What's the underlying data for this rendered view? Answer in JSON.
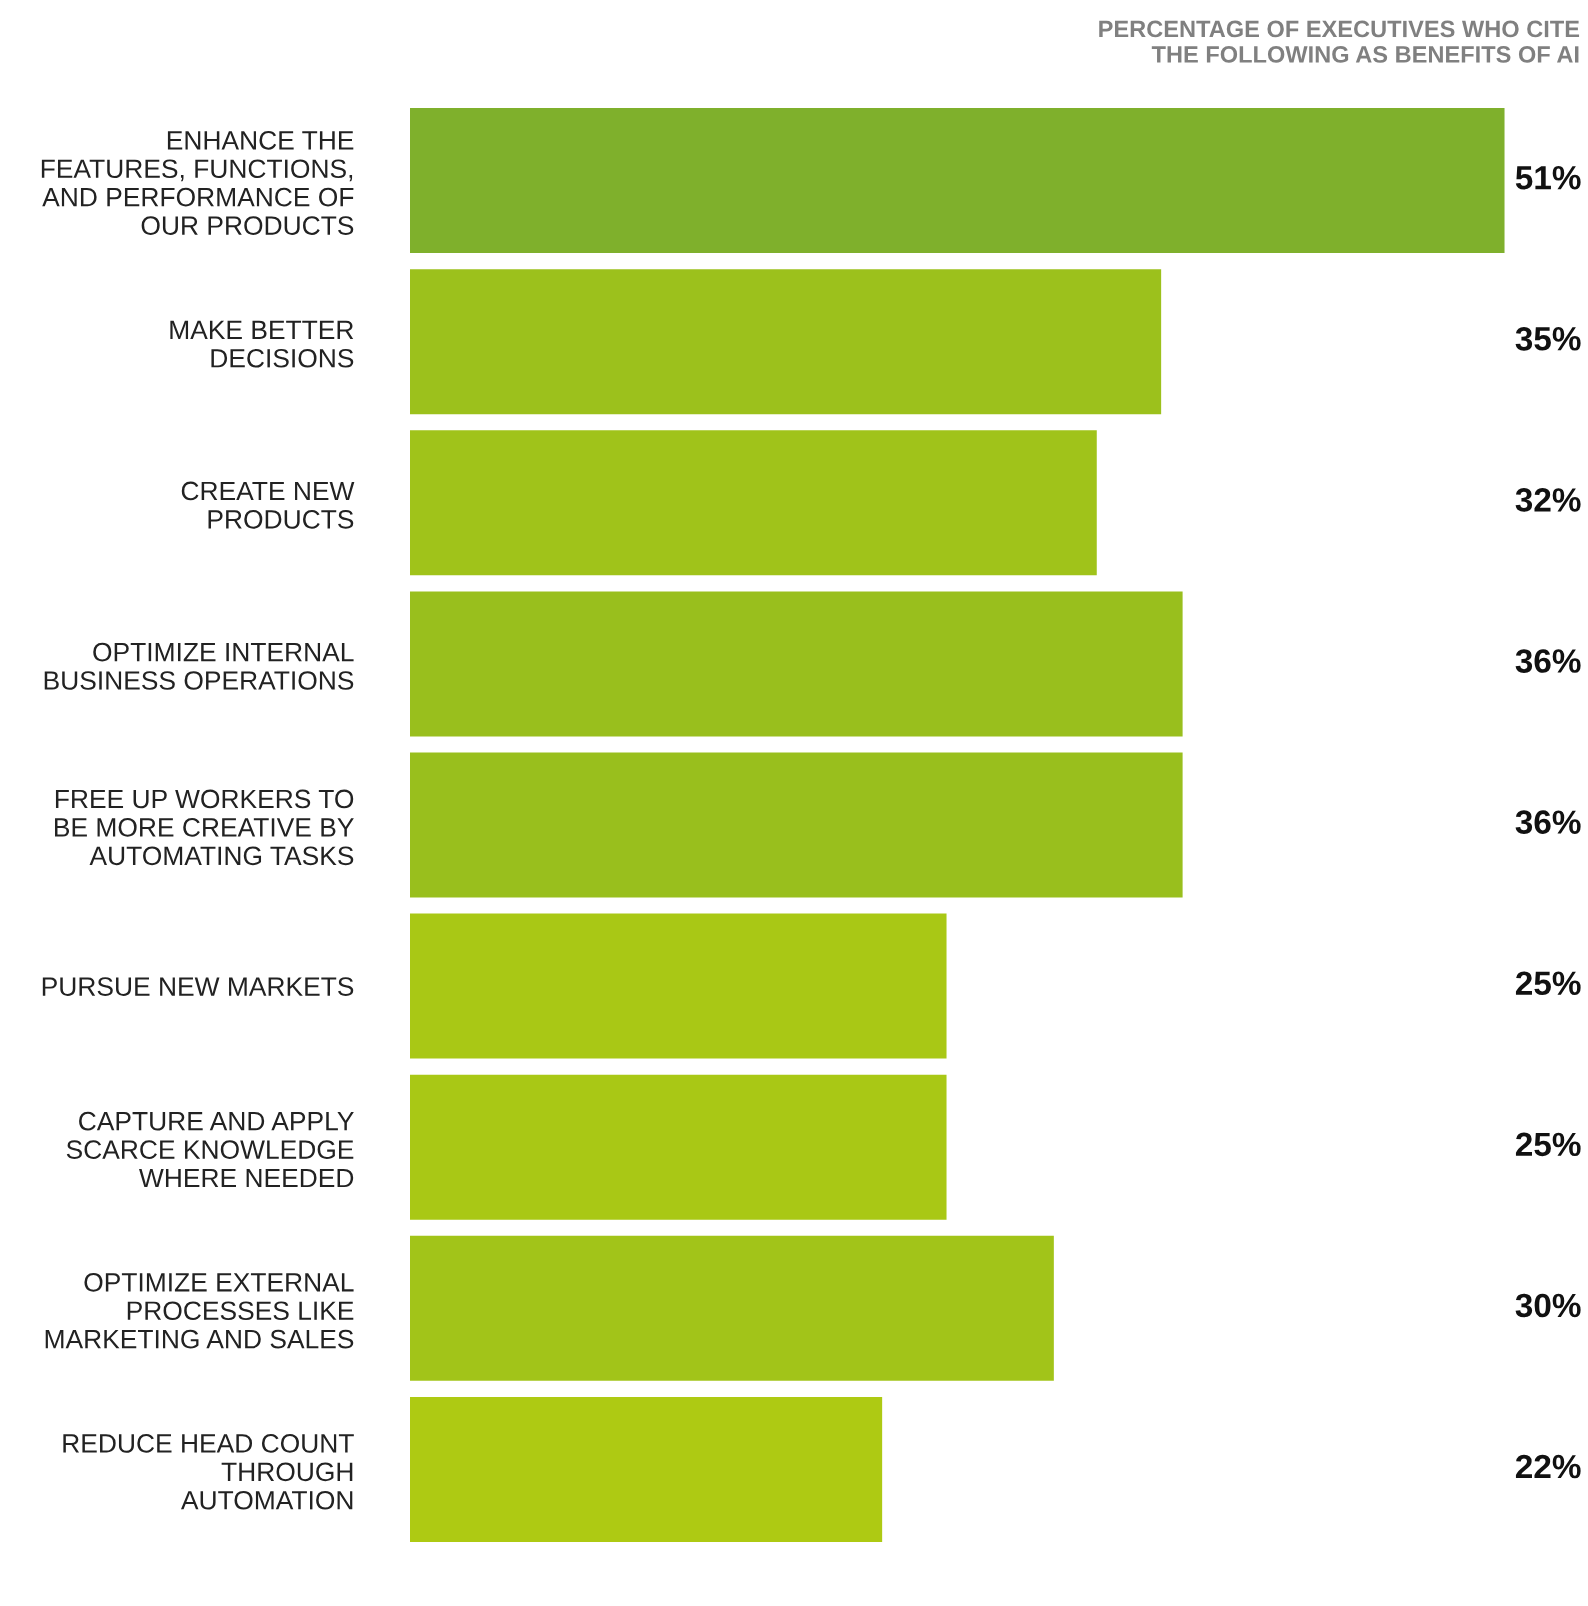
{
  "chart_data": {
    "type": "bar",
    "orientation": "horizontal",
    "title": "PERCENTAGE OF EXECUTIVES WHO CITE\nTHE FOLLOWING AS BENEFITS OF AI",
    "categories": [
      "ENHANCE THE\nFEATURES, FUNCTIONS,\nAND PERFORMANCE OF\nOUR PRODUCTS",
      "MAKE BETTER\nDECISIONS",
      "CREATE NEW\nPRODUCTS",
      "OPTIMIZE INTERNAL\nBUSINESS OPERATIONS",
      "FREE UP WORKERS TO\nBE MORE CREATIVE BY\nAUTOMATING TASKS",
      "PURSUE NEW MARKETS",
      "CAPTURE AND APPLY\nSCARCE KNOWLEDGE\nWHERE NEEDED",
      "OPTIMIZE EXTERNAL\nPROCESSES LIKE\nMARKETING AND SALES",
      "REDUCE HEAD COUNT\nTHROUGH\nAUTOMATION"
    ],
    "values": [
      51,
      35,
      32,
      36,
      36,
      25,
      25,
      30,
      22
    ],
    "colors": [
      "#7fb02c",
      "#9cc11c",
      "#a0c31a",
      "#99bf1d",
      "#99bf1d",
      "#a9c815",
      "#a9c815",
      "#a2c419",
      "#aeca13"
    ],
    "value_labels": [
      "51%",
      "35%",
      "32%",
      "36%",
      "36%",
      "25%",
      "25%",
      "30%",
      "22%"
    ],
    "grid": false,
    "legend": false
  }
}
